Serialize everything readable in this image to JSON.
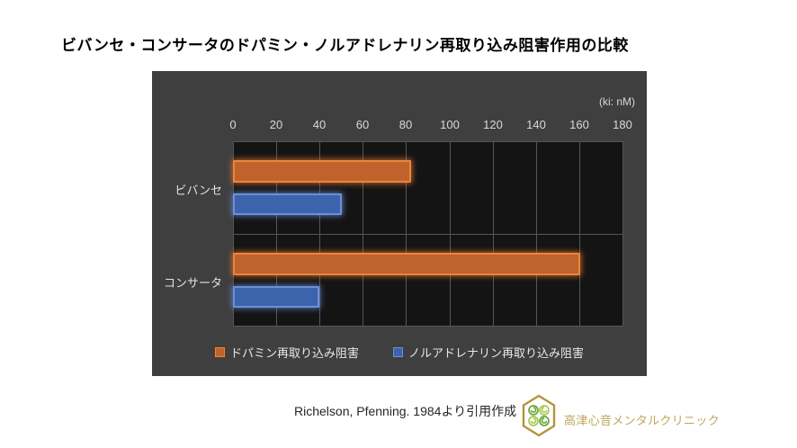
{
  "title": "ビバンセ・コンサータのドパミン・ノルアドレナリン再取り込み阻害作用の比較",
  "chart_data": {
    "type": "bar",
    "orientation": "horizontal",
    "unit_label": "(ki: nM)",
    "categories": [
      "ビバンセ",
      "コンサータ"
    ],
    "series": [
      {
        "name": "ドパミン再取り込み阻害",
        "values": [
          82,
          160
        ],
        "color": "#c0622b",
        "border_color": "#ea853c",
        "glow": "rgba(237,125,49,0.75)"
      },
      {
        "name": "ノルアドレナリン再取り込み阻害",
        "values": [
          50,
          40
        ],
        "color": "#3b64ad",
        "border_color": "#6c90d8",
        "glow": "rgba(108,144,216,0.75)"
      }
    ],
    "x_ticks": [
      0,
      20,
      40,
      60,
      80,
      100,
      120,
      140,
      160,
      180
    ],
    "xlim": [
      0,
      180
    ],
    "grid": true,
    "legend_position": "bottom",
    "panel_background": "#3f3f3f",
    "plot_background": "#141414",
    "gridline_color": "#565656",
    "tick_color": "#d9d9d9"
  },
  "footer": {
    "source": "Richelson, Pfenning. 1984より引用作成"
  },
  "logo": {
    "text": "高津心音メンタルクリニック",
    "text_color": "#bfa65a",
    "hex_border": "#b3953c",
    "petal_dark": "#6ba63c",
    "petal_light": "#a9c94e"
  }
}
